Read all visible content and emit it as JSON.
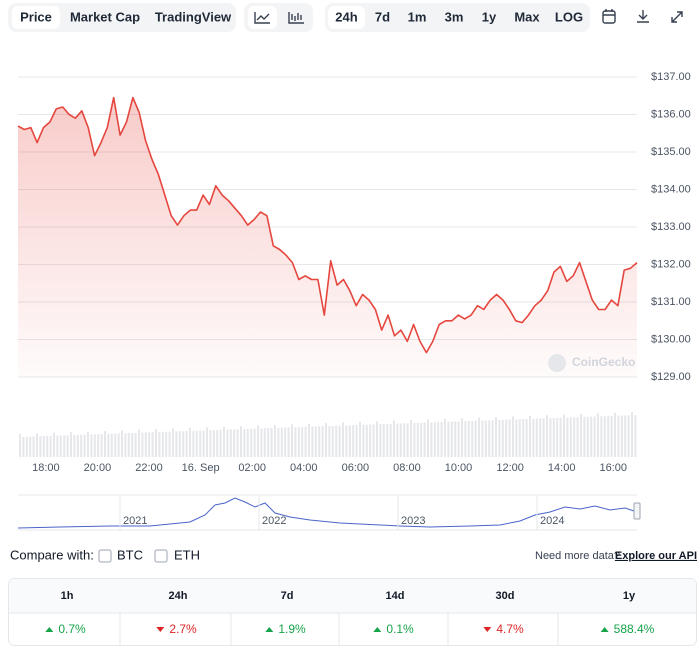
{
  "toolbar": {
    "view_tabs": [
      {
        "label": "Price",
        "active": true
      },
      {
        "label": "Market Cap"
      },
      {
        "label": "TradingView"
      }
    ],
    "range_tabs": [
      {
        "label": "24h",
        "active": true
      },
      {
        "label": "7d"
      },
      {
        "label": "1m"
      },
      {
        "label": "3m"
      },
      {
        "label": "1y"
      },
      {
        "label": "Max"
      },
      {
        "label": "LOG"
      }
    ]
  },
  "chart_data": {
    "type": "line",
    "x_labels": [
      "18:00",
      "20:00",
      "22:00",
      "16. Sep",
      "02:00",
      "04:00",
      "06:00",
      "08:00",
      "10:00",
      "12:00",
      "14:00",
      "16:00"
    ],
    "series": [
      {
        "color": "#e5473f",
        "values": [
          135.69,
          135.6,
          135.65,
          135.25,
          135.65,
          135.8,
          136.15,
          136.2,
          136.0,
          135.9,
          136.1,
          135.65,
          134.9,
          135.25,
          135.65,
          136.45,
          135.45,
          135.8,
          136.45,
          136.05,
          135.3,
          134.8,
          134.4,
          133.85,
          133.3,
          133.05,
          133.3,
          133.45,
          133.45,
          133.85,
          133.6,
          134.1,
          133.85,
          133.7,
          133.5,
          133.3,
          133.05,
          133.2,
          133.4,
          133.3,
          132.5,
          132.4,
          132.25,
          132.05,
          131.6,
          131.7,
          131.6,
          131.6,
          130.65,
          132.1,
          131.45,
          131.6,
          131.3,
          130.9,
          131.2,
          131.05,
          130.8,
          130.25,
          130.65,
          130.1,
          130.25,
          129.95,
          130.4,
          129.95,
          129.65,
          129.95,
          130.4,
          130.5,
          130.5,
          130.65,
          130.55,
          130.65,
          130.9,
          130.8,
          131.05,
          131.2,
          131.05,
          130.8,
          130.5,
          130.45,
          130.65,
          130.9,
          131.05,
          131.3,
          131.8,
          131.95,
          131.55,
          131.7,
          132.05,
          131.55,
          131.05,
          130.8,
          130.8,
          131.05,
          130.9,
          131.85,
          131.9,
          132.05
        ]
      }
    ],
    "ylim": [
      129,
      137
    ],
    "yticks": [
      {
        "value": 137,
        "label": "$137.00"
      },
      {
        "value": 136,
        "label": "$136.00"
      },
      {
        "value": 135,
        "label": "$135.00"
      },
      {
        "value": 134,
        "label": "$134.00"
      },
      {
        "value": 133,
        "label": "$133.00"
      },
      {
        "value": 132,
        "label": "$132.00"
      },
      {
        "value": 131,
        "label": "$131.00"
      },
      {
        "value": 130,
        "label": "$130.00"
      },
      {
        "value": 129,
        "label": "$129.00"
      }
    ],
    "grid": true,
    "watermark": "CoinGecko",
    "navigator_labels": [
      "2021",
      "2022",
      "2023",
      "2024"
    ]
  },
  "compare": {
    "label": "Compare with:",
    "options": [
      "BTC",
      "ETH"
    ],
    "note": "Need more data?",
    "link": "Explore our API"
  },
  "performance": {
    "columns": [
      {
        "period": "1h",
        "change": "0.7%",
        "trend": "up"
      },
      {
        "period": "24h",
        "change": "2.7%",
        "trend": "down"
      },
      {
        "period": "7d",
        "change": "1.9%",
        "trend": "up"
      },
      {
        "period": "14d",
        "change": "0.1%",
        "trend": "up"
      },
      {
        "period": "30d",
        "change": "4.7%",
        "trend": "down"
      },
      {
        "period": "1y",
        "change": "588.4%",
        "trend": "up"
      }
    ]
  }
}
